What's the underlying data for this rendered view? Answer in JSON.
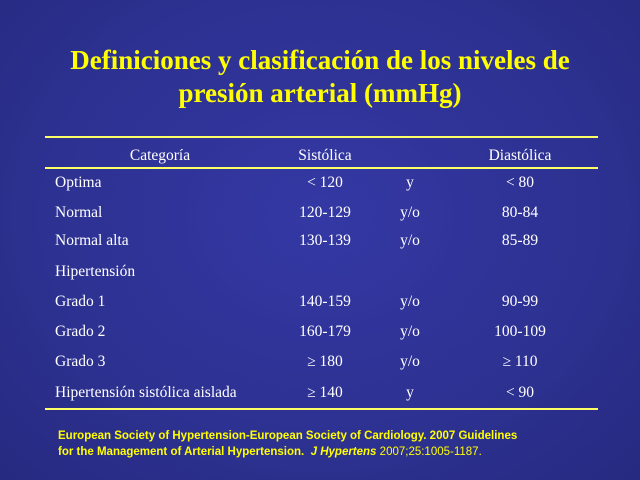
{
  "title": {
    "line1": "Definiciones y clasificación de los niveles de",
    "line2": "presión arterial (mmHg)"
  },
  "table": {
    "headers": {
      "category": "Categoría",
      "systolic": "Sistólica",
      "diastolic": "Diastólica"
    },
    "rows": [
      {
        "category": "Optima",
        "systolic": "< 120",
        "conj": "y",
        "diastolic": "< 80"
      },
      {
        "category": "Normal",
        "systolic": "120-129",
        "conj": "y/o",
        "diastolic": "80-84"
      },
      {
        "category": "Normal alta",
        "systolic": "130-139",
        "conj": "y/o",
        "diastolic": "85-89"
      },
      {
        "category": "Hipertensión",
        "systolic": "",
        "conj": "",
        "diastolic": ""
      },
      {
        "category": "Grado 1",
        "systolic": "140-159",
        "conj": "y/o",
        "diastolic": "90-99"
      },
      {
        "category": "Grado 2",
        "systolic": "160-179",
        "conj": "y/o",
        "diastolic": "100-109"
      },
      {
        "category": "Grado 3",
        "systolic": "≥ 180",
        "conj": "y/o",
        "diastolic": "≥ 110"
      },
      {
        "category": "Hipertensión sistólica aislada",
        "systolic": "≥ 140",
        "conj": "y",
        "diastolic": "< 90"
      }
    ]
  },
  "reference": {
    "line1": "European Society of Hypertension-European Society of Cardiology.  2007 Guidelines",
    "line2_bold": "for the Management of Arterial Hypertension.",
    "journal": "J Hypertens",
    "volume": "2007;25:1005-1187."
  },
  "colors": {
    "background": "#2e3192",
    "title": "#ffff00",
    "rule": "#ffff66",
    "text": "#ffffff"
  }
}
